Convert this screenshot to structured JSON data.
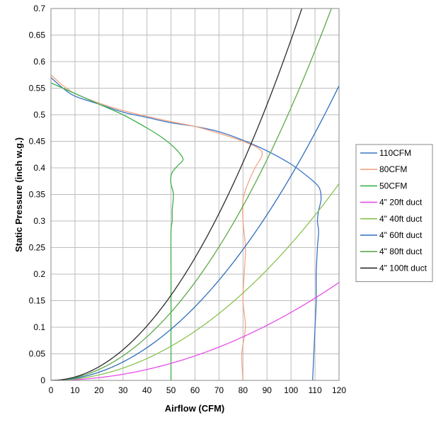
{
  "chart_data": {
    "type": "line",
    "title": "",
    "xlabel": "Airflow (CFM)",
    "ylabel": "Static Pressure (inch w.g.)",
    "xlim": [
      0,
      120
    ],
    "ylim": [
      0,
      0.7
    ],
    "xticks": [
      0,
      10,
      20,
      30,
      40,
      50,
      60,
      70,
      80,
      90,
      100,
      110,
      120
    ],
    "yticks": [
      0,
      0.05,
      0.1,
      0.15,
      0.2,
      0.25,
      0.3,
      0.35,
      0.4,
      0.45,
      0.5,
      0.55,
      0.6,
      0.65,
      0.7
    ],
    "grid": true,
    "legend_position": "right",
    "series": [
      {
        "name": "110CFM",
        "color": "#3a75c4",
        "points": [
          [
            0,
            0.57
          ],
          [
            5,
            0.55
          ],
          [
            10,
            0.535
          ],
          [
            20,
            0.52
          ],
          [
            30,
            0.505
          ],
          [
            40,
            0.495
          ],
          [
            50,
            0.485
          ],
          [
            60,
            0.478
          ],
          [
            70,
            0.468
          ],
          [
            80,
            0.452
          ],
          [
            90,
            0.432
          ],
          [
            100,
            0.407
          ],
          [
            106,
            0.387
          ],
          [
            110,
            0.372
          ],
          [
            112,
            0.36
          ],
          [
            112.5,
            0.34
          ],
          [
            111.5,
            0.32
          ],
          [
            111,
            0.3
          ],
          [
            111.5,
            0.28
          ],
          [
            111,
            0.25
          ],
          [
            110.5,
            0.2
          ],
          [
            110.5,
            0.15
          ],
          [
            110,
            0.1
          ],
          [
            109.5,
            0.05
          ],
          [
            109,
            0
          ]
        ]
      },
      {
        "name": "80CFM",
        "color": "#f4a582",
        "points": [
          [
            0,
            0.575
          ],
          [
            5,
            0.555
          ],
          [
            10,
            0.54
          ],
          [
            20,
            0.522
          ],
          [
            30,
            0.508
          ],
          [
            40,
            0.497
          ],
          [
            50,
            0.487
          ],
          [
            60,
            0.478
          ],
          [
            70,
            0.465
          ],
          [
            80,
            0.45
          ],
          [
            86,
            0.438
          ],
          [
            88,
            0.425
          ],
          [
            85,
            0.4
          ],
          [
            82,
            0.37
          ],
          [
            80,
            0.34
          ],
          [
            80,
            0.3
          ],
          [
            81,
            0.25
          ],
          [
            80.5,
            0.2
          ],
          [
            80,
            0.15
          ],
          [
            81,
            0.1
          ],
          [
            79.5,
            0.05
          ],
          [
            80,
            0
          ]
        ]
      },
      {
        "name": "50CFM",
        "color": "#3fb04a",
        "points": [
          [
            0,
            0.56
          ],
          [
            5,
            0.55
          ],
          [
            10,
            0.54
          ],
          [
            20,
            0.52
          ],
          [
            30,
            0.5
          ],
          [
            40,
            0.475
          ],
          [
            46,
            0.458
          ],
          [
            51,
            0.44
          ],
          [
            54,
            0.425
          ],
          [
            55,
            0.415
          ],
          [
            53,
            0.405
          ],
          [
            51,
            0.395
          ],
          [
            50,
            0.385
          ],
          [
            50,
            0.37
          ],
          [
            51,
            0.35
          ],
          [
            50.5,
            0.32
          ],
          [
            50.5,
            0.3
          ],
          [
            50,
            0.28
          ],
          [
            50,
            0.2
          ],
          [
            50,
            0.1
          ],
          [
            50,
            0
          ]
        ]
      },
      {
        "name": "4\" 20ft duct",
        "color": "#e84ee8",
        "coef": 1.28e-05
      },
      {
        "name": "4\" 40ft duct",
        "color": "#8cc152",
        "coef": 2.57e-05
      },
      {
        "name": "4\" 60ft duct",
        "color": "#2e6fba",
        "coef": 3.85e-05
      },
      {
        "name": "4\" 80ft duct",
        "color": "#5ea84a",
        "coef": 5.13e-05
      },
      {
        "name": "4\" 100ft duct",
        "color": "#2b2b2b",
        "coef": 6.41e-05
      }
    ]
  }
}
